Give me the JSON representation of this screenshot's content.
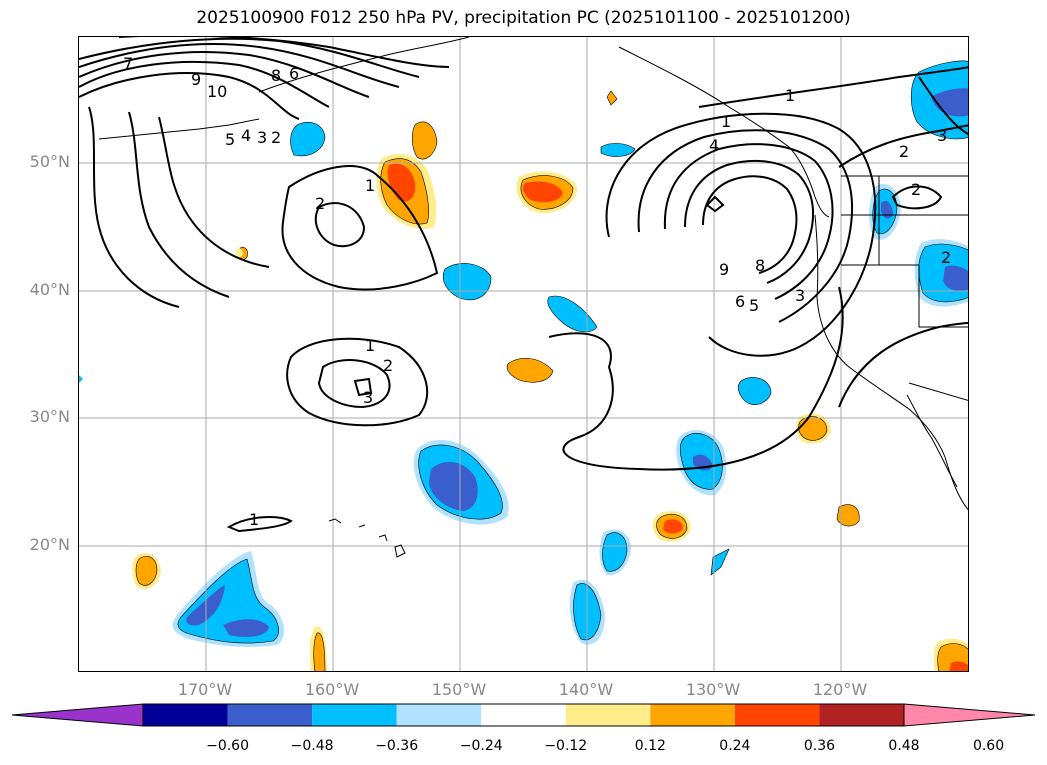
{
  "title": "2025100900 F012 250 hPa PV, precipitation PC (2025101100 - 2025101200)",
  "map": {
    "lat_labels": [
      "50°N",
      "40°N",
      "30°N",
      "20°N"
    ],
    "lon_labels": [
      "170°W",
      "160°W",
      "150°W",
      "140°W",
      "130°W",
      "120°W"
    ],
    "contour_labels": [
      "7",
      "9",
      "10",
      "8",
      "6",
      "5",
      "4",
      "3",
      "2",
      "1",
      "2",
      "1",
      "2",
      "3",
      "1",
      "4",
      "9",
      "8",
      "6",
      "5",
      "3",
      "1",
      "2",
      "2",
      "3",
      "2",
      "1"
    ]
  },
  "colorbar": {
    "colors": [
      "#9933cc",
      "#000099",
      "#3a5fcd",
      "#00bfff",
      "#b0e2ff",
      "#ffffff",
      "#ffec8b",
      "#ffa500",
      "#ff4500",
      "#b22222",
      "#ff88aa"
    ],
    "ticks": [
      "−0.60",
      "−0.48",
      "−0.36",
      "−0.24",
      "−0.12",
      "0.12",
      "0.24",
      "0.36",
      "0.48",
      "0.60"
    ]
  }
}
